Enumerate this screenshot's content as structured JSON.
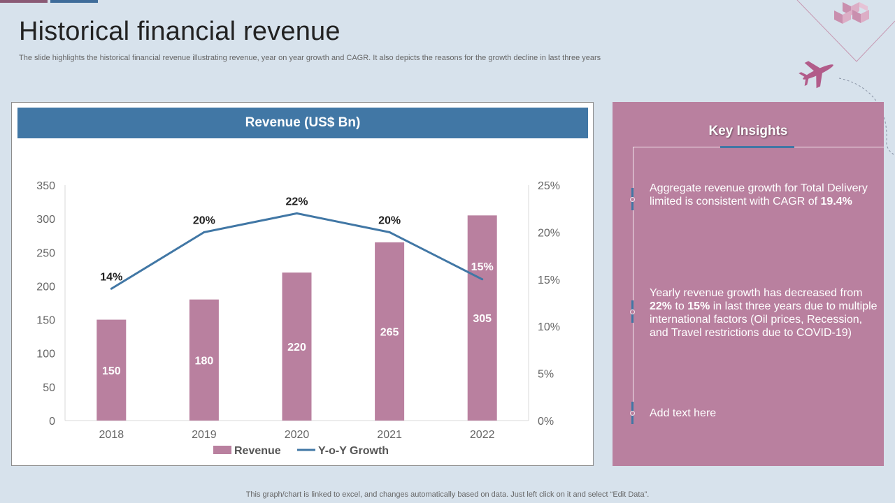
{
  "page": {
    "title": "Historical financial revenue",
    "subtitle": "The slide highlights the historical financial revenue illustrating revenue, year on year growth and CAGR. It also depicts the reasons for the growth decline in last three years",
    "footer": "This graph/chart is linked to excel, and changes automatically based on data. Just left click on it and select “Edit Data”."
  },
  "colors": {
    "bar": "#b9809f",
    "line": "#4177a5",
    "header": "#4177a5",
    "panel": "#b9809f"
  },
  "chart_data": {
    "type": "bar",
    "title": "Revenue (US$ Bn)",
    "categories": [
      "2018",
      "2019",
      "2020",
      "2021",
      "2022"
    ],
    "series": [
      {
        "name": "Revenue",
        "type": "bar",
        "axis": "left",
        "values": [
          150,
          180,
          220,
          265,
          305
        ],
        "labels": [
          "150",
          "180",
          "220",
          "265",
          "305"
        ]
      },
      {
        "name": "Y-o-Y Growth",
        "type": "line",
        "axis": "right",
        "values": [
          14,
          20,
          22,
          20,
          15
        ],
        "labels": [
          "14%",
          "20%",
          "22%",
          "20%",
          "15%"
        ]
      }
    ],
    "y_left": {
      "min": 0,
      "max": 350,
      "step": 50,
      "ticks": [
        "0",
        "50",
        "100",
        "150",
        "200",
        "250",
        "300",
        "350"
      ]
    },
    "y_right": {
      "min": 0,
      "max": 25,
      "step": 5,
      "ticks": [
        "0%",
        "5%",
        "10%",
        "15%",
        "20%",
        "25%"
      ]
    },
    "legend": [
      "Revenue",
      "Y-o-Y Growth"
    ],
    "legend_position": "bottom"
  },
  "insights": {
    "title": "Key Insights",
    "items": [
      {
        "pre": "Aggregate revenue growth for Total Delivery limited is consistent with CAGR of ",
        "bold1": "19.4%",
        "mid": "",
        "bold2": "",
        "post": ""
      },
      {
        "pre": "Yearly revenue growth has decreased from ",
        "bold1": "22%",
        "mid": " to ",
        "bold2": "15%",
        "post": " in last three years due to multiple international factors (Oil prices, Recession, and Travel restrictions due to COVID-19)"
      },
      {
        "pre": "Add text here",
        "bold1": "",
        "mid": "",
        "bold2": "",
        "post": ""
      }
    ]
  }
}
